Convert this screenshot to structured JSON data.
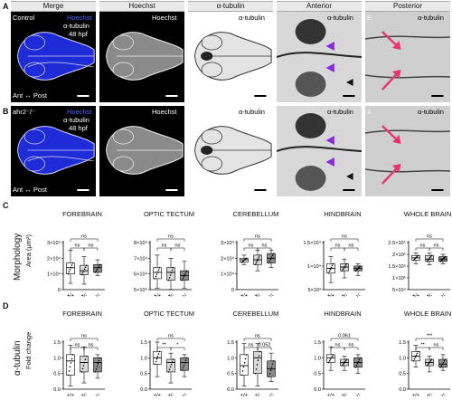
{
  "panels": {
    "A": "A",
    "B": "B",
    "C": "C",
    "D": "D"
  },
  "columns": [
    "Merge",
    "Hoechst",
    "α-tubulin",
    "Anterior",
    "Posterior"
  ],
  "row_a": {
    "genotype": "Control",
    "merge_labels": [
      "Hoechst",
      "α-tubulin",
      "48 hpf"
    ],
    "axis": "Ant ↔ Post",
    "hoechst": "Hoechst",
    "tubulin": "α-tubulin",
    "anterior": "α-tubulin",
    "posterior": "α-tubulin",
    "posterior_letter": "E"
  },
  "row_b": {
    "genotype": "ahr2⁻/⁻",
    "merge_labels": [
      "Hoechst",
      "α-tubulin",
      "48 hpf"
    ],
    "axis": "Ant ↔ Post",
    "hoechst": "Hoechst",
    "tubulin": "α-tubulin",
    "anterior": "α-tubulin",
    "posterior": "α-tubulin",
    "posterior_letter": "J"
  },
  "row_c_ylabel_outer": "Morphology",
  "row_c_ylabel_inner": "Area (μm²)",
  "row_d_ylabel_outer": "α-tubulin",
  "row_d_ylabel_inner": "Fold change",
  "colors": {
    "wt": "#ffffff",
    "het": "#d9d9d9",
    "mut": "#8c8c8c",
    "arrow_pink": "#e8336f",
    "arrow_purple": "#8a2be2",
    "dapi_blue": "#1e2bd6"
  },
  "chart_data": [
    {
      "type": "box",
      "title": "FOREBRAIN",
      "categories": [
        "+/+",
        "+/-",
        "-/-"
      ],
      "yticks": [
        "0",
        "1×10⁴",
        "2×10⁴",
        "3×10⁴"
      ],
      "ylim": [
        0,
        3
      ],
      "medians": [
        1.4,
        1.2,
        1.4
      ],
      "q1": [
        1.0,
        0.95,
        1.1
      ],
      "q3": [
        1.7,
        1.55,
        1.6
      ],
      "min": [
        0.4,
        0.35,
        0.9
      ],
      "max": [
        2.5,
        2.1,
        1.9
      ],
      "sig": [
        "ns",
        "ns",
        "ns"
      ]
    },
    {
      "type": "box",
      "title": "OPTIC TECTUM",
      "categories": [
        "+/+",
        "+/-",
        "-/-"
      ],
      "yticks": [
        "5×10⁴",
        "6×10⁴",
        "7×10⁴",
        "8×10⁴"
      ],
      "ylim": [
        5,
        8
      ],
      "medians": [
        6.1,
        6.1,
        5.9
      ],
      "q1": [
        5.7,
        5.6,
        5.6
      ],
      "q3": [
        6.4,
        6.4,
        6.2
      ],
      "min": [
        5.1,
        5.0,
        5.1
      ],
      "max": [
        7.2,
        7.0,
        6.8
      ],
      "sig": [
        "ns",
        "ns",
        "ns"
      ]
    },
    {
      "type": "box",
      "title": "CEREBELLUM",
      "categories": [
        "+/+",
        "+/-",
        "-/-"
      ],
      "yticks": [
        "0",
        "1×10⁴",
        "2×10⁴",
        "3×10⁴"
      ],
      "ylim": [
        0,
        3
      ],
      "medians": [
        1.9,
        1.9,
        2.0
      ],
      "q1": [
        1.75,
        1.6,
        1.7
      ],
      "q3": [
        2.0,
        2.2,
        2.3
      ],
      "min": [
        1.6,
        1.2,
        1.4
      ],
      "max": [
        2.2,
        2.5,
        2.5
      ],
      "sig": [
        "ns",
        "ns",
        "ns"
      ]
    },
    {
      "type": "box",
      "title": "HINDBRAIN",
      "categories": [
        "+/+",
        "+/-",
        "-/-"
      ],
      "yticks": [
        "5×10³",
        "1×10⁴",
        "1.5×10⁴"
      ],
      "ylim": [
        0.5,
        1.5
      ],
      "medians": [
        0.95,
        0.98,
        0.95
      ],
      "q1": [
        0.85,
        0.9,
        0.9
      ],
      "q3": [
        1.05,
        1.05,
        1.0
      ],
      "min": [
        0.65,
        0.75,
        0.8
      ],
      "max": [
        1.2,
        1.15,
        1.05
      ],
      "sig": [
        "ns",
        "ns",
        "ns"
      ]
    },
    {
      "type": "box",
      "title": "WHOLE BRAIN",
      "categories": [
        "+/+",
        "+/-",
        "-/-"
      ],
      "yticks": [
        "5×10⁴",
        "1×10⁵",
        "1.5×10⁵",
        "2×10⁵",
        "2.5×10⁵"
      ],
      "ylim": [
        0.5,
        2.5
      ],
      "medians": [
        1.85,
        1.8,
        1.8
      ],
      "q1": [
        1.75,
        1.7,
        1.7
      ],
      "q3": [
        1.95,
        1.95,
        1.9
      ],
      "min": [
        1.6,
        1.55,
        1.6
      ],
      "max": [
        2.05,
        2.05,
        2.0
      ],
      "sig": [
        "ns",
        "ns",
        "ns"
      ]
    },
    {
      "type": "box",
      "title": "FOREBRAIN",
      "categories": [
        "+/+",
        "+/-",
        "-/-"
      ],
      "yticks": [
        "0.0",
        "0.5",
        "1.0",
        "1.5"
      ],
      "ylim": [
        0,
        1.5
      ],
      "medians": [
        0.9,
        0.85,
        0.85
      ],
      "q1": [
        0.45,
        0.55,
        0.55
      ],
      "q3": [
        1.1,
        1.05,
        1.0
      ],
      "min": [
        0.1,
        0.2,
        0.35
      ],
      "max": [
        1.4,
        1.35,
        1.1
      ],
      "sig": [
        "ns",
        "ns",
        "ns"
      ]
    },
    {
      "type": "box",
      "title": "OPTIC TECTUM",
      "categories": [
        "+/+",
        "+/-",
        "-/-"
      ],
      "yticks": [
        "0.0",
        "0.5",
        "1.0",
        "1.5"
      ],
      "ylim": [
        0,
        1.5
      ],
      "medians": [
        1.0,
        0.85,
        0.85
      ],
      "q1": [
        0.8,
        0.55,
        0.6
      ],
      "q3": [
        1.2,
        0.95,
        1.0
      ],
      "min": [
        0.4,
        0.2,
        0.4
      ],
      "max": [
        1.5,
        1.15,
        1.1
      ],
      "sig": [
        "ns",
        "**",
        "*"
      ]
    },
    {
      "type": "box",
      "title": "CEREBELLUM",
      "categories": [
        "+/+",
        "+/-",
        "-/-"
      ],
      "yticks": [
        "0.0",
        "0.5",
        "1.0",
        "1.5"
      ],
      "ylim": [
        0,
        1.5
      ],
      "medians": [
        0.75,
        1.0,
        0.65
      ],
      "q1": [
        0.45,
        0.5,
        0.4
      ],
      "q3": [
        1.1,
        1.2,
        0.9
      ],
      "min": [
        0.1,
        0.1,
        0.25
      ],
      "max": [
        1.45,
        1.45,
        1.15
      ],
      "sig": [
        "ns",
        "ns",
        "0.052"
      ]
    },
    {
      "type": "box",
      "title": "HINDBRAIN",
      "categories": [
        "+/+",
        "+/-",
        "-/-"
      ],
      "yticks": [
        "0.0",
        "0.5",
        "1.0",
        "1.5"
      ],
      "ylim": [
        0,
        1.5
      ],
      "medians": [
        1.0,
        0.85,
        0.85
      ],
      "q1": [
        0.85,
        0.75,
        0.7
      ],
      "q3": [
        1.1,
        0.95,
        1.0
      ],
      "min": [
        0.6,
        0.6,
        0.5
      ],
      "max": [
        1.35,
        1.05,
        1.1
      ],
      "sig": [
        "0.061",
        "ns",
        "ns"
      ]
    },
    {
      "type": "box",
      "title": "WHOLE BRAIN",
      "categories": [
        "+/+",
        "+/-",
        "-/-"
      ],
      "yticks": [
        "0.0",
        "0.5",
        "1.0",
        "1.5"
      ],
      "ylim": [
        0,
        1.5
      ],
      "medians": [
        1.05,
        0.85,
        0.8
      ],
      "q1": [
        0.9,
        0.75,
        0.7
      ],
      "q3": [
        1.2,
        0.95,
        0.95
      ],
      "min": [
        0.7,
        0.55,
        0.6
      ],
      "max": [
        1.4,
        1.05,
        1.1
      ],
      "sig": [
        "***",
        "**",
        "ns"
      ]
    }
  ]
}
